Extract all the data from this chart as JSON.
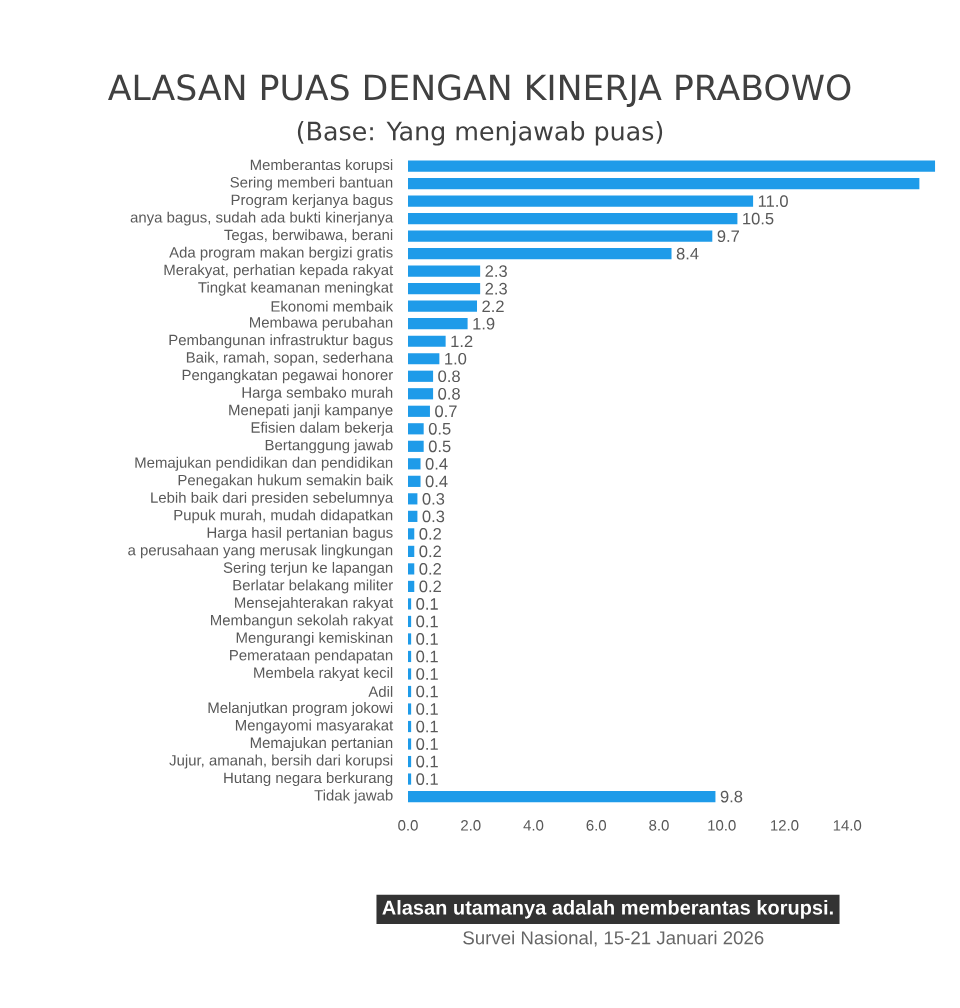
{
  "chart_data": {
    "type": "bar",
    "orientation": "horizontal",
    "title": "ALASAN PUAS DENGAN KINERJA PRABOWO",
    "subtitle": "(Base: Yang menjawab puas)",
    "categories": [
      "Memberantas korupsi",
      "Sering memberi bantuan",
      "Program kerjanya bagus",
      "anya bagus, sudah ada bukti kinerjanya",
      "Tegas, berwibawa, berani",
      "Ada program makan bergizi gratis",
      "Merakyat, perhatian kepada rakyat",
      "Tingkat keamanan meningkat",
      "Ekonomi membaik",
      "Membawa perubahan",
      "Pembangunan infrastruktur bagus",
      "Baik, ramah, sopan, sederhana",
      "Pengangkatan pegawai honorer",
      "Harga sembako murah",
      "Menepati janji kampanye",
      "Efisien dalam bekerja",
      "Bertanggung jawab",
      "Memajukan pendidikan dan pendidikan",
      "Penegakan hukum semakin baik",
      "Lebih baik dari presiden sebelumnya",
      "Pupuk murah, mudah didapatkan",
      "Harga hasil pertanian bagus",
      "a perusahaan yang merusak lingkungan",
      "Sering terjun ke lapangan",
      "Berlatar belakang militer",
      "Mensejahterakan rakyat",
      "Membangun sekolah rakyat",
      "Mengurangi kemiskinan",
      "Pemerataan pendapatan",
      "Membela rakyat kecil",
      "Adil",
      "Melanjutkan program jokowi",
      "Mengayomi masyarakat",
      "Memajukan pertanian",
      "Jujur, amanah, bersih dari korupsi",
      "Hutang negara berkurang",
      "Tidak jawab"
    ],
    "values": [
      16.8,
      16.3,
      11.0,
      10.5,
      9.7,
      8.4,
      2.3,
      2.3,
      2.2,
      1.9,
      1.2,
      1.0,
      0.8,
      0.8,
      0.7,
      0.5,
      0.5,
      0.4,
      0.4,
      0.3,
      0.3,
      0.2,
      0.2,
      0.2,
      0.2,
      0.1,
      0.1,
      0.1,
      0.1,
      0.1,
      0.1,
      0.1,
      0.1,
      0.1,
      0.1,
      0.1,
      9.8
    ],
    "value_labels": [
      null,
      null,
      "11.0",
      "10.5",
      "9.7",
      "8.4",
      "2.3",
      "2.3",
      "2.2",
      "1.9",
      "1.2",
      "1.0",
      "0.8",
      "0.8",
      "0.7",
      "0.5",
      "0.5",
      "0.4",
      "0.4",
      "0.3",
      "0.3",
      "0.2",
      "0.2",
      "0.2",
      "0.2",
      "0.1",
      "0.1",
      "0.1",
      "0.1",
      "0.1",
      "0.1",
      "0.1",
      "0.1",
      "0.1",
      "0.1",
      "0.1",
      "9.8"
    ],
    "color": "#1e9be9",
    "xlim": [
      0,
      17
    ],
    "xticks": [
      {
        "value": 0,
        "label": "0.0"
      },
      {
        "value": 2,
        "label": "2.0"
      },
      {
        "value": 4,
        "label": "4.0"
      },
      {
        "value": 6,
        "label": "6.0"
      },
      {
        "value": 8,
        "label": "8.0"
      },
      {
        "value": 10,
        "label": "10.0"
      },
      {
        "value": 12,
        "label": "12.0"
      },
      {
        "value": 14,
        "label": "14.0"
      }
    ],
    "annotations": [
      "Alasan utamanya adalah memberantas korupsi.",
      "Survei Nasional, 15-21 Januari 2026"
    ]
  }
}
